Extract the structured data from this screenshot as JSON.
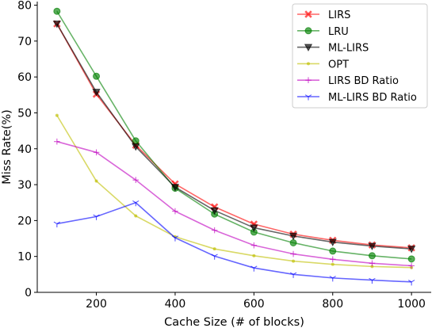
{
  "chart_data": {
    "type": "line",
    "xlabel": "Cache Size (# of blocks)",
    "ylabel": "Miss Rate(%)",
    "xlim": [
      50,
      1050
    ],
    "ylim": [
      0,
      81
    ],
    "xticks": [
      200,
      400,
      600,
      800,
      1000
    ],
    "yticks": [
      0,
      10,
      20,
      30,
      40,
      50,
      60,
      70,
      80
    ],
    "legend_position": "top-right",
    "grid": false,
    "x": [
      100,
      200,
      300,
      400,
      500,
      600,
      700,
      800,
      900,
      1000
    ],
    "series": [
      {
        "name": "LIRS",
        "color": "#ff0000",
        "marker": "x",
        "values": [
          74.8,
          55.2,
          41.0,
          30.2,
          23.8,
          19.0,
          16.2,
          14.5,
          13.2,
          12.4
        ]
      },
      {
        "name": "LRU",
        "color": "#008000",
        "marker": "o",
        "values": [
          78.3,
          60.2,
          42.2,
          29.0,
          21.8,
          16.8,
          13.8,
          11.5,
          10.2,
          9.3
        ]
      },
      {
        "name": "ML-LIRS",
        "color": "#000000",
        "marker": "v",
        "values": [
          74.8,
          55.8,
          40.6,
          29.3,
          22.8,
          18.0,
          15.7,
          14.0,
          12.9,
          12.1
        ]
      },
      {
        "name": "OPT",
        "color": "#bfbf00",
        "marker": ".",
        "values": [
          49.3,
          31.0,
          21.3,
          15.5,
          12.1,
          10.2,
          8.7,
          7.8,
          7.2,
          6.9
        ]
      },
      {
        "name": "LIRS BD Ratio",
        "color": "#bf00bf",
        "marker": "+",
        "values": [
          42.0,
          39.0,
          31.3,
          22.6,
          17.3,
          13.1,
          10.7,
          9.2,
          8.1,
          7.4
        ]
      },
      {
        "name": "ML-LIRS BD Ratio",
        "color": "#0000ff",
        "marker": "1",
        "values": [
          19.1,
          21.1,
          25.0,
          15.2,
          10.1,
          6.8,
          5.0,
          4.0,
          3.4,
          2.9
        ]
      }
    ]
  }
}
